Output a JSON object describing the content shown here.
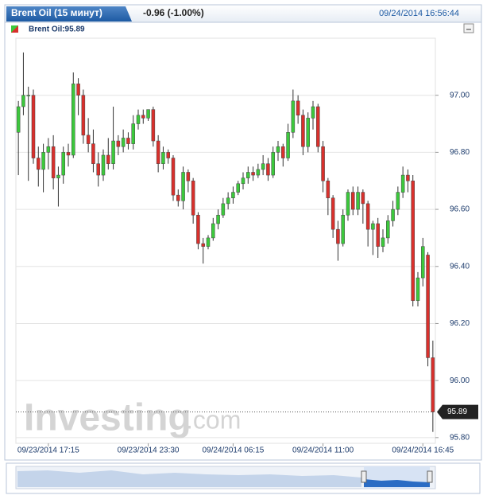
{
  "header": {
    "tab_title": "Brent Oil (15 минут)",
    "change": "-0.96 (-1.00%)",
    "timestamp": "09/24/2014 16:56:44"
  },
  "chart_data": {
    "type": "candlestick",
    "legend_label": "Brent Oil:95.89",
    "watermark_main": "Investing",
    "watermark_suffix": ".com",
    "up_color": "#3cc83c",
    "down_color": "#d8302c",
    "categories": [
      null,
      null,
      null,
      null,
      null,
      null,
      "09/23/2014 17:15",
      null,
      null,
      null,
      null,
      null,
      null,
      null,
      null,
      null,
      null,
      null,
      null,
      null,
      null,
      null,
      null,
      null,
      null,
      null,
      "09/23/2014 23:30",
      null,
      null,
      null,
      null,
      null,
      null,
      null,
      null,
      null,
      null,
      null,
      null,
      null,
      null,
      null,
      null,
      "09/24/2014 06:15",
      null,
      null,
      null,
      null,
      null,
      null,
      null,
      null,
      null,
      null,
      null,
      null,
      null,
      null,
      null,
      null,
      null,
      "09/24/2014 11:00",
      null,
      null,
      null,
      null,
      null,
      null,
      null,
      null,
      null,
      null,
      null,
      null,
      null,
      null,
      null,
      null,
      null,
      null,
      null,
      "09/24/2014 16:45",
      null,
      null
    ],
    "open": [
      96.87,
      96.96,
      97.0,
      97.0,
      96.78,
      96.74,
      96.8,
      96.82,
      96.71,
      96.72,
      96.8,
      96.79,
      97.04,
      97.0,
      96.86,
      96.83,
      96.76,
      96.72,
      96.79,
      96.76,
      96.84,
      96.82,
      96.85,
      96.83,
      96.9,
      96.93,
      96.92,
      96.95,
      96.84,
      96.76,
      96.8,
      96.78,
      96.65,
      96.63,
      96.73,
      96.7,
      96.58,
      96.48,
      96.47,
      96.5,
      96.55,
      96.58,
      96.62,
      96.64,
      96.66,
      96.69,
      96.71,
      96.73,
      96.72,
      96.74,
      96.76,
      96.72,
      96.8,
      96.82,
      96.78,
      96.87,
      96.98,
      96.93,
      96.82,
      96.92,
      96.96,
      96.82,
      96.7,
      96.64,
      96.53,
      96.48,
      96.58,
      96.66,
      96.6,
      96.66,
      96.62,
      96.53,
      96.55,
      96.47,
      96.5,
      96.56,
      96.6,
      96.66,
      96.72,
      96.7,
      96.28,
      96.36,
      96.44,
      96.08
    ],
    "high": [
      96.98,
      97.15,
      97.03,
      97.02,
      96.82,
      96.83,
      96.85,
      96.86,
      96.75,
      96.82,
      96.83,
      97.08,
      97.06,
      97.02,
      96.92,
      96.88,
      96.8,
      96.81,
      96.85,
      96.96,
      96.86,
      96.88,
      96.87,
      96.93,
      96.95,
      96.95,
      96.95,
      96.96,
      96.86,
      96.82,
      96.81,
      96.79,
      96.67,
      96.75,
      96.74,
      96.71,
      96.59,
      96.5,
      96.51,
      96.57,
      96.6,
      96.64,
      96.66,
      96.68,
      96.7,
      96.73,
      96.75,
      96.75,
      96.76,
      96.79,
      96.78,
      96.82,
      96.84,
      96.83,
      96.9,
      97.02,
      97.0,
      96.95,
      96.94,
      96.98,
      96.97,
      96.84,
      96.71,
      96.65,
      96.56,
      96.6,
      96.67,
      96.68,
      96.68,
      96.67,
      96.63,
      96.56,
      96.57,
      96.53,
      96.58,
      96.63,
      96.68,
      96.75,
      96.74,
      96.72,
      96.38,
      96.5,
      96.45,
      96.14
    ],
    "low": [
      96.72,
      96.93,
      96.7,
      96.76,
      96.68,
      96.66,
      96.74,
      96.67,
      96.61,
      96.69,
      96.75,
      96.78,
      96.93,
      96.83,
      96.8,
      96.73,
      96.68,
      96.7,
      96.74,
      96.74,
      96.79,
      96.8,
      96.81,
      96.81,
      96.88,
      96.9,
      96.91,
      96.82,
      96.73,
      96.74,
      96.76,
      96.63,
      96.61,
      96.6,
      96.66,
      96.55,
      96.46,
      96.41,
      96.46,
      96.49,
      96.53,
      96.57,
      96.6,
      96.62,
      96.65,
      96.67,
      96.69,
      96.7,
      96.71,
      96.72,
      96.7,
      96.71,
      96.77,
      96.75,
      96.77,
      96.85,
      96.9,
      96.79,
      96.8,
      96.88,
      96.8,
      96.66,
      96.58,
      96.5,
      96.42,
      96.47,
      96.56,
      96.58,
      96.58,
      96.55,
      96.47,
      96.44,
      96.43,
      96.45,
      96.48,
      96.54,
      96.58,
      96.64,
      96.66,
      96.26,
      96.26,
      96.33,
      96.05,
      95.82
    ],
    "close": [
      96.96,
      97.0,
      97.0,
      96.78,
      96.74,
      96.8,
      96.82,
      96.71,
      96.72,
      96.8,
      96.79,
      97.04,
      97.0,
      96.86,
      96.83,
      96.76,
      96.72,
      96.79,
      96.76,
      96.84,
      96.82,
      96.85,
      96.83,
      96.9,
      96.93,
      96.92,
      96.95,
      96.84,
      96.76,
      96.8,
      96.78,
      96.65,
      96.63,
      96.73,
      96.7,
      96.58,
      96.48,
      96.47,
      96.5,
      96.55,
      96.58,
      96.62,
      96.64,
      96.66,
      96.69,
      96.71,
      96.73,
      96.72,
      96.74,
      96.76,
      96.72,
      96.8,
      96.82,
      96.78,
      96.87,
      96.98,
      96.93,
      96.82,
      96.92,
      96.96,
      96.82,
      96.7,
      96.64,
      96.53,
      96.48,
      96.58,
      96.66,
      96.6,
      96.66,
      96.62,
      96.53,
      96.55,
      96.47,
      96.5,
      96.56,
      96.6,
      96.66,
      96.72,
      96.7,
      96.28,
      96.36,
      96.47,
      96.08,
      95.89
    ],
    "ylim": [
      95.78,
      97.2
    ],
    "yticks": [
      {
        "value": 95.8,
        "label": "95.80"
      },
      {
        "value": 96,
        "label": "96.00"
      },
      {
        "value": 96.2,
        "label": "96.20"
      },
      {
        "value": 96.4,
        "label": "96.40"
      },
      {
        "value": 96.6,
        "label": "96.60"
      },
      {
        "value": 96.8,
        "label": "96.80"
      },
      {
        "value": 97,
        "label": "97.00"
      }
    ],
    "grid": true
  }
}
